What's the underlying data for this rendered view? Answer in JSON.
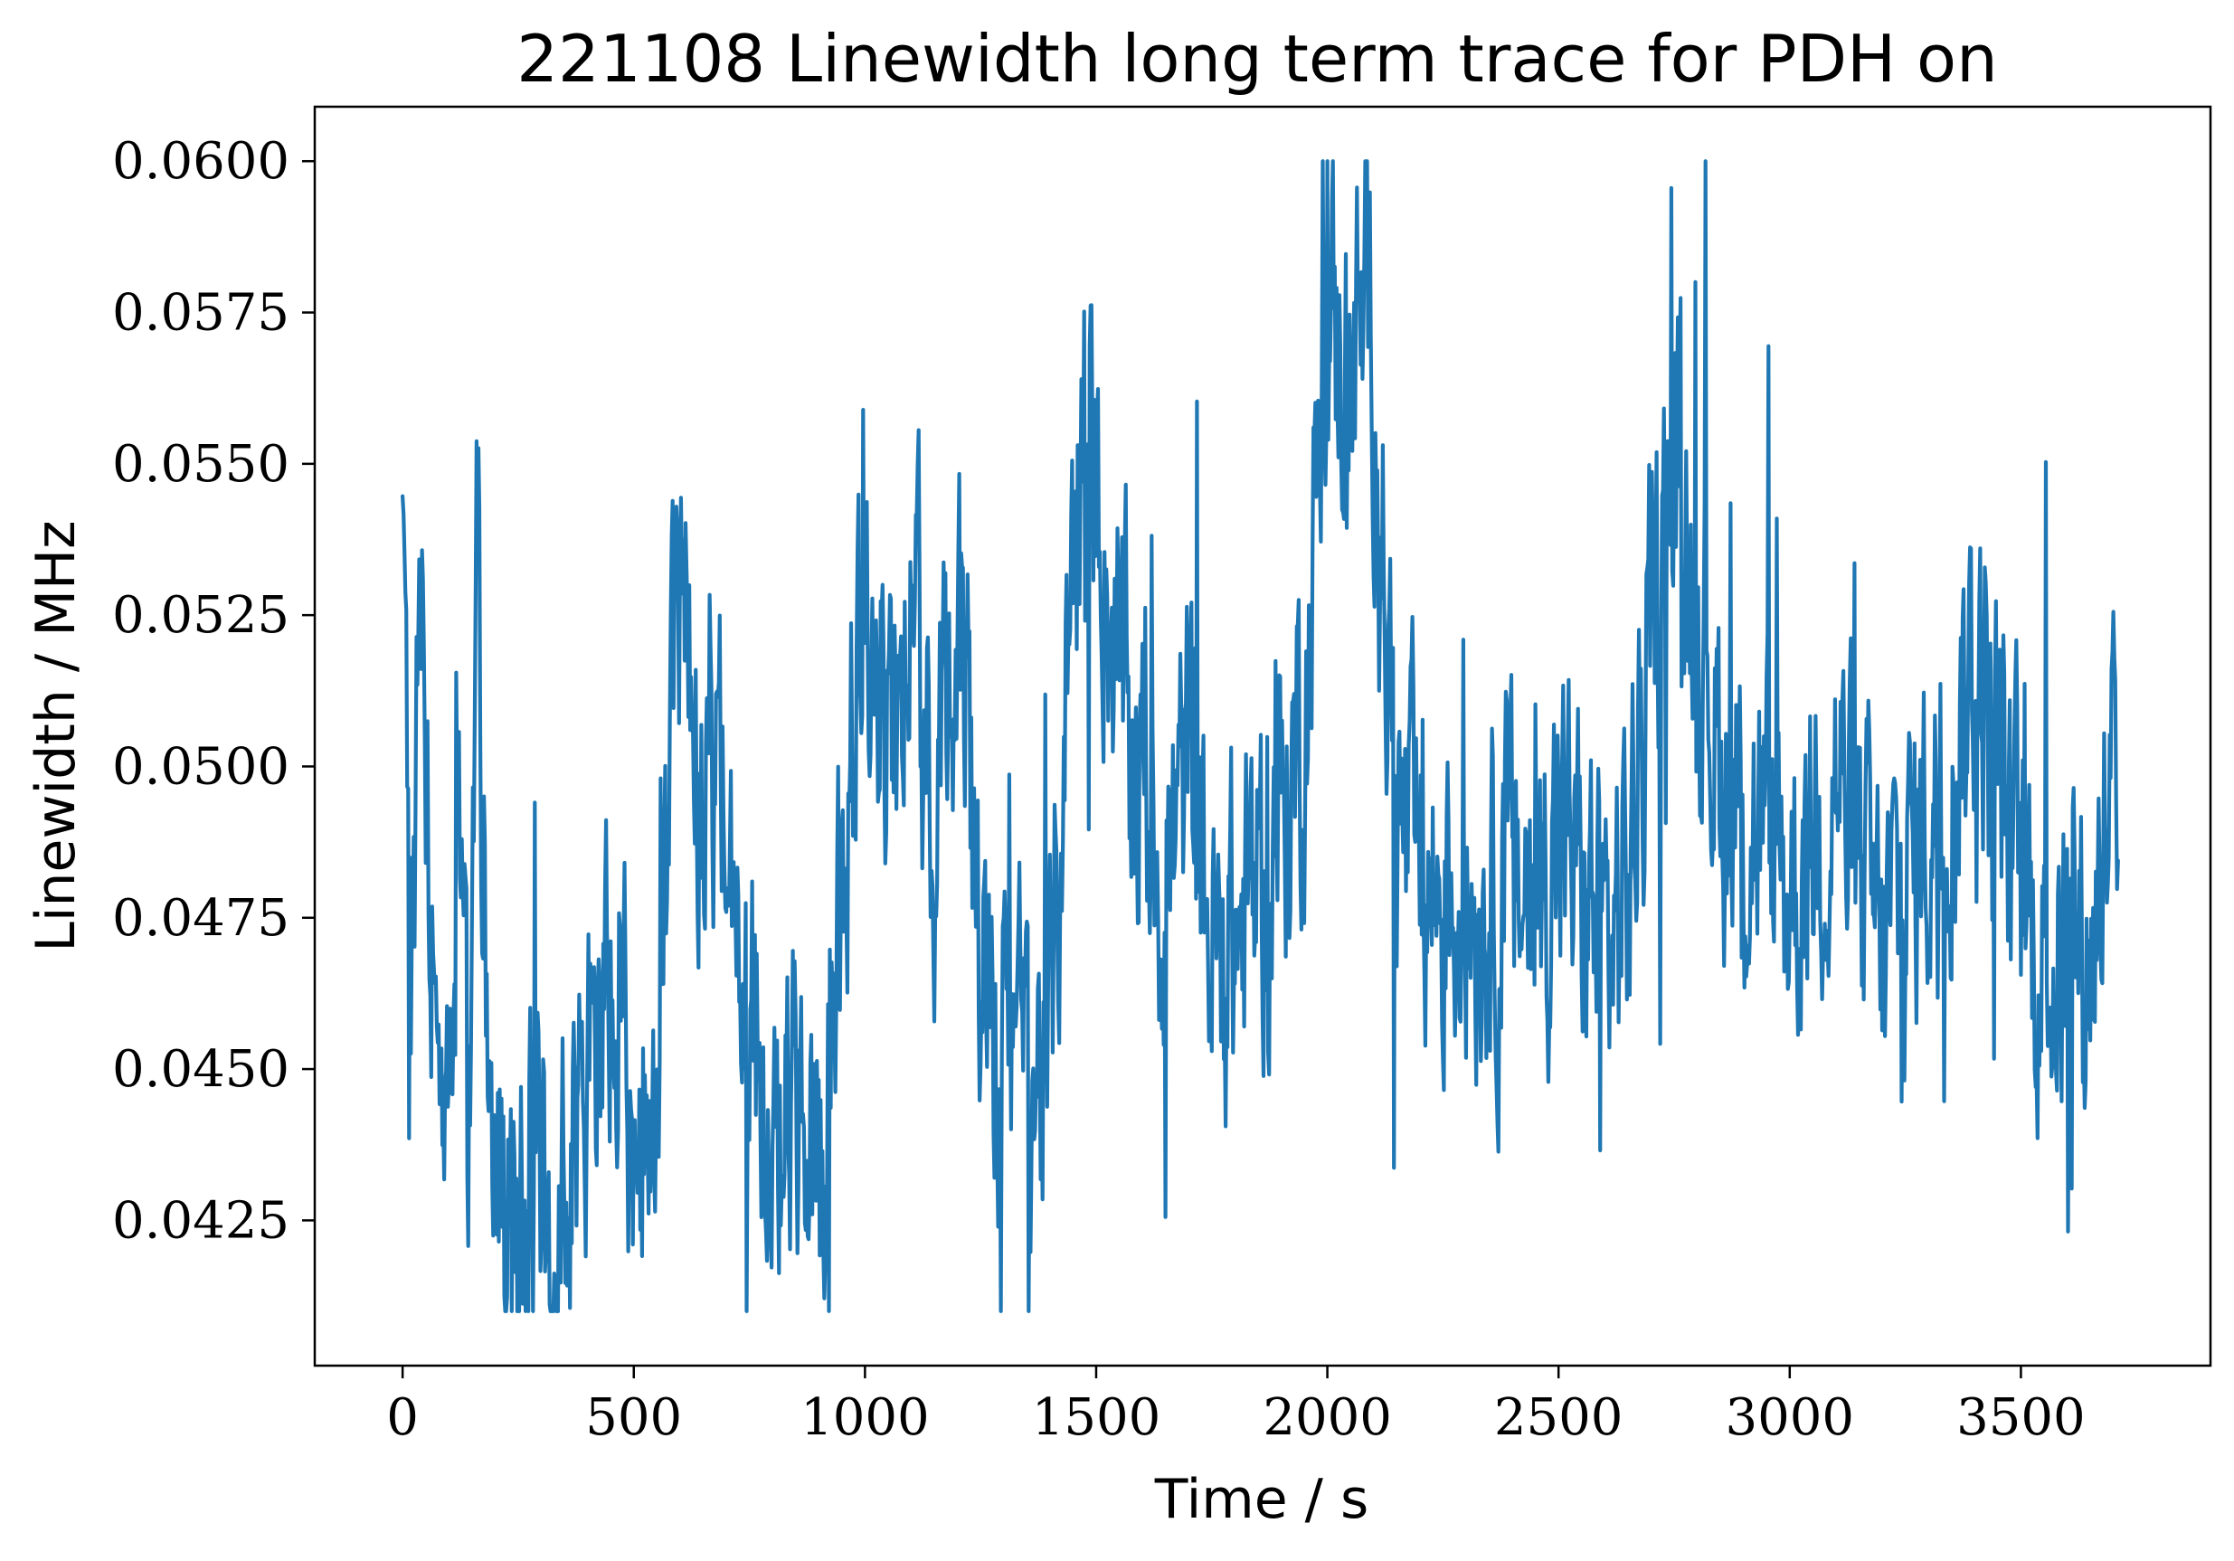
{
  "chart_data": {
    "type": "line",
    "title": "221108 Linewidth long term trace for PDH on",
    "xlabel": "Time / s",
    "ylabel": "Linewidth / MHz",
    "xlim": [
      -190,
      3910
    ],
    "ylim": [
      0.0401,
      0.0609
    ],
    "xticks": [
      0,
      500,
      1000,
      1500,
      2000,
      2500,
      3000,
      3500
    ],
    "yticks": [
      0.0425,
      0.045,
      0.0475,
      0.05,
      0.0525,
      0.055,
      0.0575,
      0.06
    ],
    "ytick_labels": [
      "0.0425",
      "0.0450",
      "0.0475",
      "0.0500",
      "0.0525",
      "0.0550",
      "0.0575",
      "0.0600"
    ],
    "grid": false,
    "legend": "none",
    "color": "#1f77b4",
    "sample_interval_s": 2,
    "anchors": [
      [
        0,
        0.0544
      ],
      [
        20,
        0.047
      ],
      [
        40,
        0.053
      ],
      [
        60,
        0.048
      ],
      [
        80,
        0.045
      ],
      [
        100,
        0.044
      ],
      [
        120,
        0.052
      ],
      [
        140,
        0.043
      ],
      [
        160,
        0.053
      ],
      [
        180,
        0.047
      ],
      [
        200,
        0.043
      ],
      [
        250,
        0.0422
      ],
      [
        300,
        0.0425
      ],
      [
        350,
        0.043
      ],
      [
        400,
        0.045
      ],
      [
        450,
        0.046
      ],
      [
        500,
        0.044
      ],
      [
        550,
        0.045
      ],
      [
        600,
        0.053
      ],
      [
        650,
        0.049
      ],
      [
        700,
        0.05
      ],
      [
        750,
        0.046
      ],
      [
        800,
        0.045
      ],
      [
        850,
        0.044
      ],
      [
        900,
        0.043
      ],
      [
        950,
        0.048
      ],
      [
        1000,
        0.053
      ],
      [
        1050,
        0.051
      ],
      [
        1100,
        0.052
      ],
      [
        1150,
        0.05
      ],
      [
        1200,
        0.053
      ],
      [
        1250,
        0.047
      ],
      [
        1300,
        0.045
      ],
      [
        1350,
        0.045
      ],
      [
        1400,
        0.045
      ],
      [
        1450,
        0.054
      ],
      [
        1500,
        0.055
      ],
      [
        1550,
        0.051
      ],
      [
        1600,
        0.05
      ],
      [
        1650,
        0.048
      ],
      [
        1700,
        0.05
      ],
      [
        1750,
        0.047
      ],
      [
        1800,
        0.047
      ],
      [
        1850,
        0.048
      ],
      [
        1900,
        0.049
      ],
      [
        1950,
        0.051
      ],
      [
        2000,
        0.057
      ],
      [
        2050,
        0.057
      ],
      [
        2100,
        0.057
      ],
      [
        2150,
        0.049
      ],
      [
        2200,
        0.048
      ],
      [
        2250,
        0.048
      ],
      [
        2300,
        0.048
      ],
      [
        2350,
        0.048
      ],
      [
        2400,
        0.048
      ],
      [
        2450,
        0.048
      ],
      [
        2500,
        0.049
      ],
      [
        2550,
        0.048
      ],
      [
        2600,
        0.047
      ],
      [
        2650,
        0.048
      ],
      [
        2700,
        0.052
      ],
      [
        2750,
        0.055
      ],
      [
        2800,
        0.053
      ],
      [
        2850,
        0.05
      ],
      [
        2900,
        0.049
      ],
      [
        2950,
        0.049
      ],
      [
        3000,
        0.048
      ],
      [
        3050,
        0.049
      ],
      [
        3100,
        0.05
      ],
      [
        3150,
        0.048
      ],
      [
        3200,
        0.047
      ],
      [
        3250,
        0.048
      ],
      [
        3300,
        0.049
      ],
      [
        3350,
        0.05
      ],
      [
        3400,
        0.052
      ],
      [
        3450,
        0.05
      ],
      [
        3500,
        0.048
      ],
      [
        3550,
        0.047
      ],
      [
        3600,
        0.047
      ],
      [
        3650,
        0.047
      ],
      [
        3700,
        0.05
      ],
      [
        3710,
        0.046
      ]
    ]
  }
}
